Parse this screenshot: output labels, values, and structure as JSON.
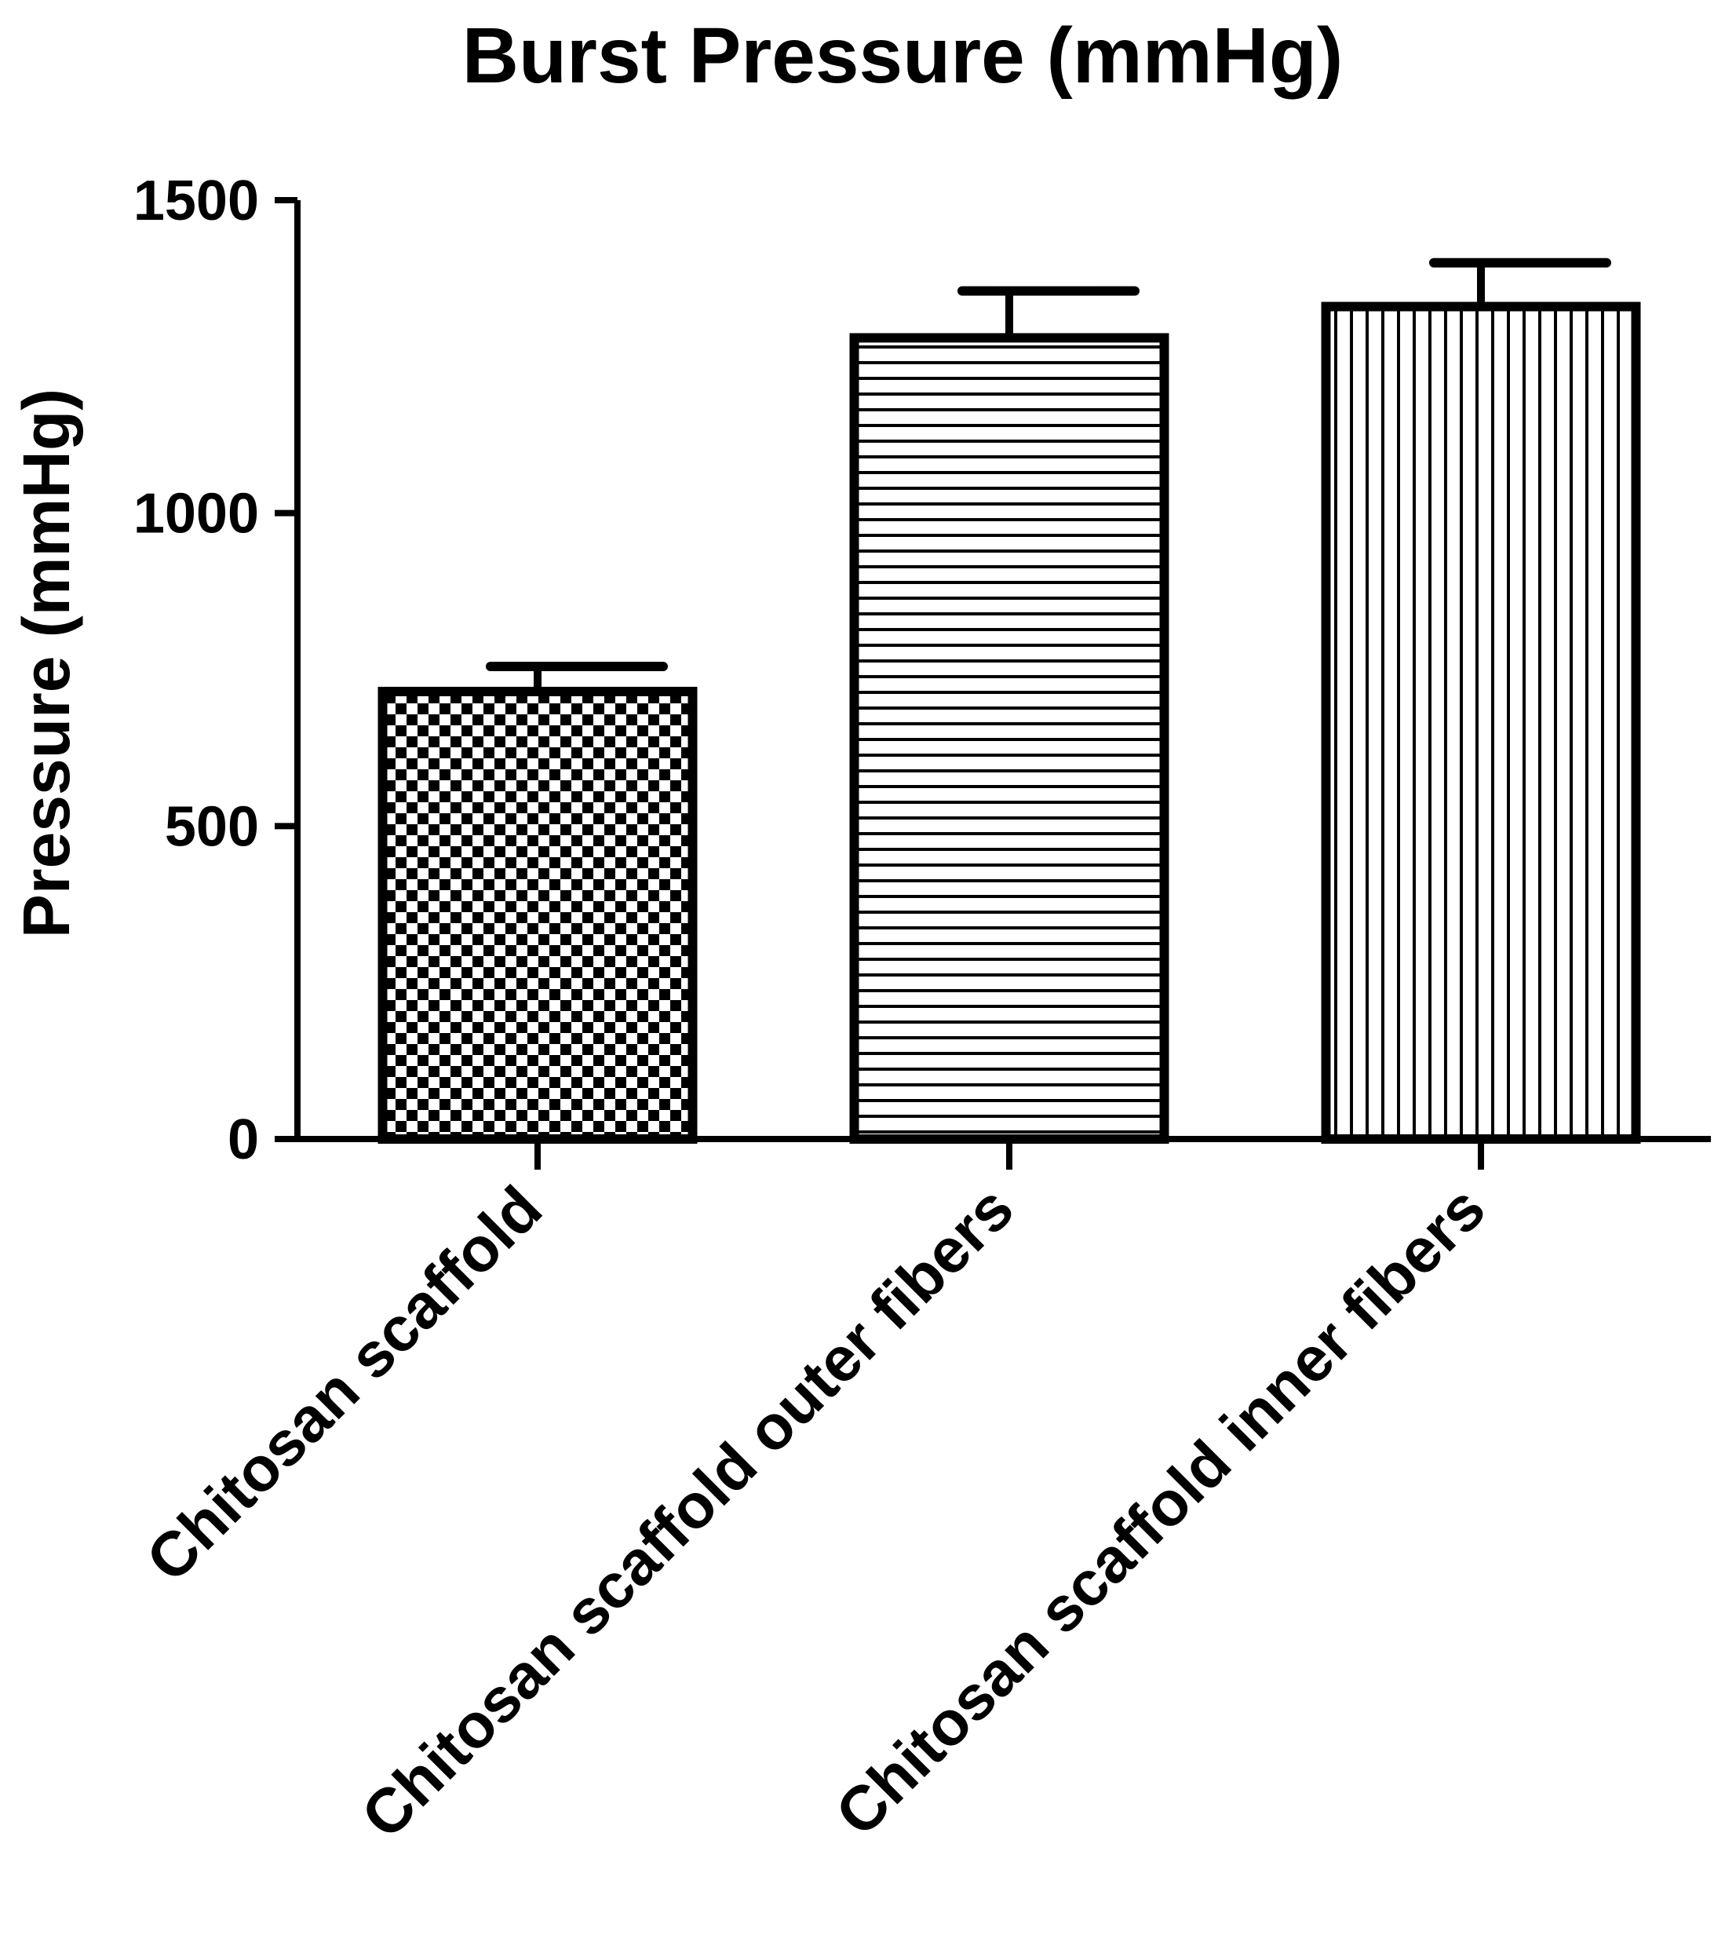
{
  "chart_data": {
    "type": "bar",
    "title": "Burst Pressure (mmHg)",
    "xlabel": "",
    "ylabel": "Pressure (mmHg)",
    "ylim": [
      0,
      1500
    ],
    "yticks": [
      0,
      500,
      1000,
      1500
    ],
    "grid": false,
    "legend": "none",
    "categories": [
      "Chitosan scaffold",
      "Chitosan scaffold outer fibers",
      "Chitosan scaffold inner fibers"
    ],
    "values": [
      715,
      1280,
      1330
    ],
    "errors": [
      40,
      75,
      70
    ],
    "patterns": [
      "checkerboard",
      "horizontal-lines",
      "vertical-lines"
    ],
    "colors": {
      "stroke": "#000000",
      "fill": "#ffffff"
    }
  }
}
